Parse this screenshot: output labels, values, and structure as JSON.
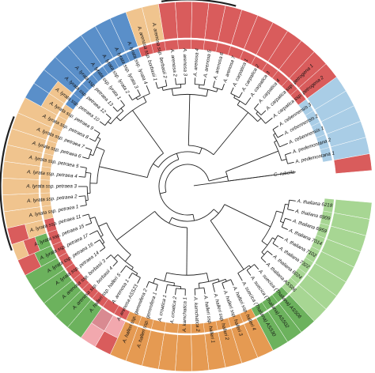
{
  "figure": {
    "colors": {
      "red": "#d95c5c",
      "blue": "#5a8fc9",
      "lightblue": "#a9cde6",
      "orange": "#e59a52",
      "peach": "#f0c48e",
      "green": "#6cb25d",
      "lightgreen": "#a7d693",
      "pink": "#f2a8ae",
      "darkpink": "#d98a91"
    },
    "accent_arcs": [
      {
        "name": "top-marker",
        "color": "#222222"
      },
      {
        "name": "left-marker",
        "color": "#222222"
      }
    ],
    "tips": [
      "A. thaliana 6218",
      "A. thaliana 6909",
      "A. thaliana 6959",
      "A. thaliana 7014",
      "A. thaliana 7102",
      "A. thaliana 7322",
      "A. thaliana 6024",
      "A. thaliana ASS06",
      "A. suecica (Thaliana) ASS06",
      "A. suecica (Thaliana) ASS02",
      "A. suecica (Thaliana) ASS30",
      "A. halleri ssp. halleri 4",
      "A. halleri ssp. halleri 3",
      "A. halleri ssp. halleri 2",
      "A. halleri ssp. halleri 1",
      "A. kamchatica 2",
      "A. kamchatica 1",
      "A. croatica 2",
      "A. croatica 1",
      "A. halleri ssp. gemmifera 1",
      "A. halleri ssp. gemmifera 2",
      "A. arenosa ASS23",
      "A. arenosa 1",
      "A. halleri ssp. halleri 5",
      "A. arenosa ssp. borbasii 4",
      "A. arenosa ssp. borbasii 3",
      "A. lyrata ssp. petraea 14",
      "A. lyrata ssp. petraea 16",
      "A. lyrata ssp. petraea 17",
      "A. lyrata ssp. petraea 15",
      "A. lyrata ssp. petraea 11",
      "A. lyrata ssp. petraea 1",
      "A. lyrata ssp. petraea 2",
      "A. lyrata ssp. petraea 3",
      "A. lyrata ssp. petraea 4",
      "A. lyrata ssp. petraea 5",
      "A. lyrata ssp. petraea 6",
      "A. lyrata ssp. petraea 7",
      "A. lyrata ssp. petraea 8",
      "A. lyrata ssp. petraea 9",
      "A. lyrata ssp. petraea 10",
      "A. lyrata ssp. petraea 12",
      "A. lyrata ssp. petraea 13",
      "A. lyrata ssp. lyrata 1",
      "A. lyrata ssp. lyrata 2",
      "A. lyrata ssp. lyrata 3",
      "A. lyrata ssp. lyrata 4",
      "A. arenosa ssp. borbasii 1",
      "A. arenosa ssp. borbasii 2",
      "A. arenosa 2",
      "A. arenosa 3",
      "A. arenosa 4",
      "A. arenosa 5",
      "A. arenosa 6",
      "A. arenosa 7",
      "A. carpatica 1",
      "A. carpatica 2",
      "A. carpatica 3",
      "A. carpatica 4",
      "A. carpatica ssp. petrogena 1",
      "A. carpatica ssp. petrogena 2",
      "A. cebennensis 3",
      "A. cebennensis 2",
      "A. cebennensis 1",
      "A. pedemontana 2",
      "A. pedemontana 1",
      "C. rubella"
    ],
    "outer_ring": [
      [
        "lightgreen"
      ],
      [
        "lightgreen"
      ],
      [
        "lightgreen"
      ],
      [
        "lightgreen"
      ],
      [
        "lightgreen"
      ],
      [
        "lightgreen"
      ],
      [
        "lightgreen"
      ],
      [
        "lightgreen"
      ],
      [
        "green"
      ],
      [
        "green"
      ],
      [
        "green"
      ],
      [
        "orange"
      ],
      [
        "orange"
      ],
      [
        "orange"
      ],
      [
        "orange"
      ],
      [
        "orange"
      ],
      [
        "orange"
      ],
      [
        "orange"
      ],
      [
        "orange"
      ],
      [
        "orange"
      ],
      [
        "orange"
      ],
      [
        "pink",
        "red"
      ],
      [
        "darkpink",
        "pink"
      ],
      [
        "green"
      ],
      [
        "green"
      ],
      [
        "green"
      ],
      [
        "green"
      ],
      [
        "green"
      ],
      [
        "green",
        "red"
      ],
      [
        "green",
        "red",
        "peach"
      ],
      [
        "peach",
        "red"
      ],
      [
        "peach"
      ],
      [
        "peach"
      ],
      [
        "peach"
      ],
      [
        "peach"
      ],
      [
        "peach"
      ],
      [
        "peach"
      ],
      [
        "peach"
      ],
      [
        "peach"
      ],
      [
        "peach",
        "blue"
      ],
      [
        "peach",
        "blue"
      ],
      [
        "blue"
      ],
      [
        "blue"
      ],
      [
        "blue"
      ],
      [
        "blue"
      ],
      [
        "blue"
      ],
      [
        "blue"
      ],
      [
        "peach"
      ],
      [
        "peach"
      ],
      [
        "red"
      ],
      [
        "red"
      ],
      [
        "red"
      ],
      [
        "red"
      ],
      [
        "red"
      ],
      [
        "red"
      ],
      [
        "red"
      ],
      [
        "red"
      ],
      [
        "red"
      ],
      [
        "red"
      ],
      [
        "red"
      ],
      [
        "red"
      ],
      [
        "lightblue"
      ],
      [
        "lightblue"
      ],
      [
        "lightblue"
      ],
      [
        "lightblue"
      ],
      [
        "lightblue"
      ],
      [
        "red"
      ]
    ],
    "inner_ring": [
      "lightgreen",
      "lightgreen",
      "lightgreen",
      "lightgreen",
      "lightgreen",
      "lightgreen",
      "lightgreen",
      "lightgreen",
      "green",
      "green",
      "green",
      "orange",
      "orange",
      "orange",
      "orange",
      "orange",
      "orange",
      "orange",
      "orange",
      "orange",
      "orange",
      "red",
      "red",
      "red",
      "red",
      "red",
      "red",
      "red",
      "red",
      "red",
      "red",
      "peach",
      "peach",
      "peach",
      "peach",
      "peach",
      "peach",
      "peach",
      "peach",
      "peach",
      "blue",
      "blue",
      "blue",
      "blue",
      "blue",
      "blue",
      "blue",
      "red",
      "red",
      "red",
      "red",
      "red",
      "red",
      "red",
      "red",
      "red",
      "red",
      "red",
      "red",
      "red",
      "red",
      "lightblue",
      "lightblue",
      "lightblue",
      "lightblue",
      "lightblue",
      "white"
    ]
  }
}
